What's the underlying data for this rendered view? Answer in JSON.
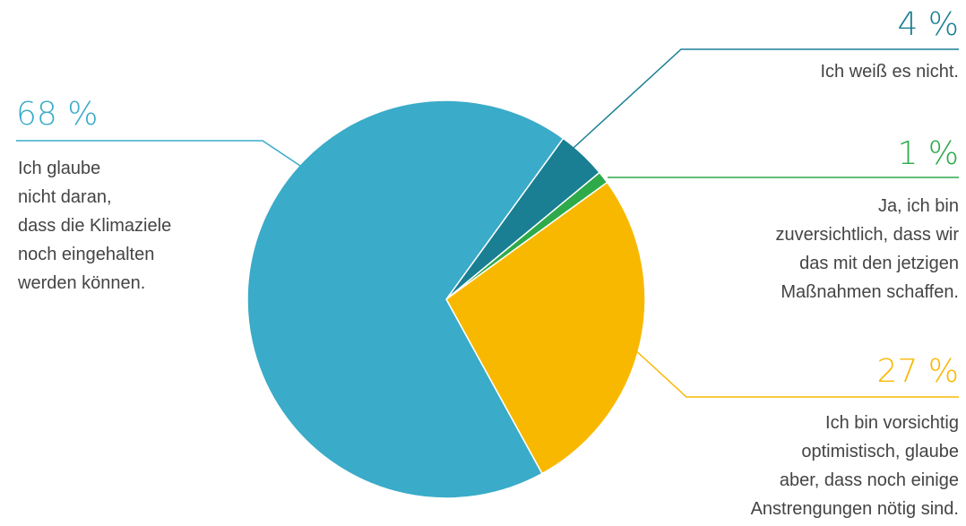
{
  "chart_data": {
    "type": "pie",
    "categories": [
      "Ich weiß es nicht.",
      "Ja, ich bin\nzuversichtlich, dass wir\ndas mit den jetzigen\nMaßnahmen schaffen.",
      "Ich bin vorsichtig\noptimistisch, glaube\naber, dass noch einige\nAnstrengungen nötig sind.",
      "Ich glaube\nnicht daran,\ndass die Klimaziele\nnoch eingehalten\nwerden können."
    ],
    "values": [
      4,
      1,
      27,
      68
    ],
    "value_labels": [
      "4 %",
      "1 %",
      "27 %",
      "68 %"
    ],
    "colors": [
      "#1a7f93",
      "#2eaa4a",
      "#f9b800",
      "#3aabc8"
    ]
  }
}
